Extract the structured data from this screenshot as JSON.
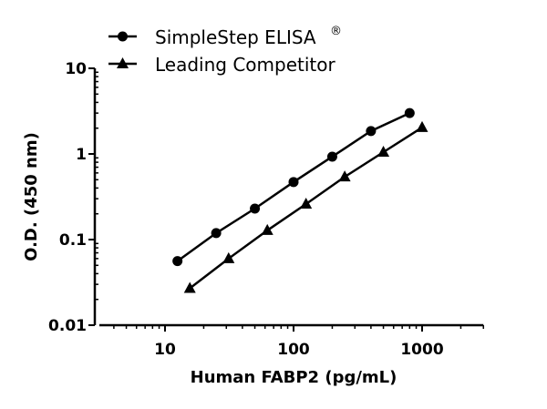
{
  "chart_data": {
    "type": "line",
    "title": "",
    "xlabel": "Human FABP2 (pg/mL)",
    "ylabel": "O.D. (450 nm)",
    "xscale": "log",
    "yscale": "log",
    "xlim": [
      3.1,
      3000
    ],
    "ylim": [
      0.01,
      10
    ],
    "x_ticks": [
      10,
      100,
      1000
    ],
    "x_tick_labels": [
      "10",
      "100",
      "1000"
    ],
    "y_ticks": [
      0.01,
      0.1,
      1,
      10
    ],
    "y_tick_labels": [
      "0.01",
      "0.1",
      "1",
      "10"
    ],
    "grid": false,
    "legend_position": "top-left, above plot",
    "series": [
      {
        "name": "SimpleStep ELISA®",
        "marker": "circle",
        "color": "#000000",
        "x": [
          12.5,
          25,
          50,
          100,
          200,
          400,
          800
        ],
        "y": [
          0.056,
          0.119,
          0.23,
          0.47,
          0.93,
          1.85,
          3.0
        ]
      },
      {
        "name": "Leading Competitor",
        "marker": "triangle",
        "color": "#000000",
        "x": [
          15.6,
          31.25,
          62.5,
          125,
          250,
          500,
          1000
        ],
        "y": [
          0.027,
          0.06,
          0.128,
          0.26,
          0.54,
          1.05,
          2.04
        ]
      }
    ]
  },
  "legend": {
    "items": [
      {
        "label": "SimpleStep ELISA",
        "superscript": "®",
        "marker": "circle"
      },
      {
        "label": "Leading Competitor",
        "superscript": "",
        "marker": "triangle"
      }
    ]
  },
  "axes": {
    "x_title": "Human FABP2 (pg/mL)",
    "y_title": "O.D. (450 nm)"
  }
}
